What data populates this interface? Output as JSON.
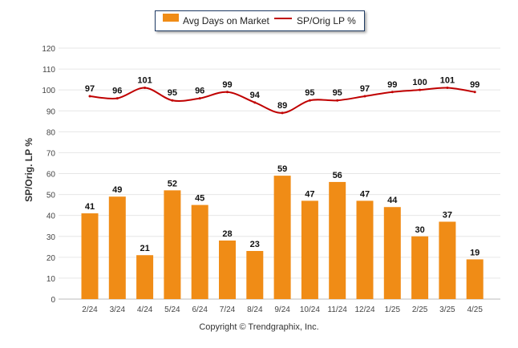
{
  "chart_data": {
    "type": "bar",
    "categories": [
      "2/24",
      "3/24",
      "4/24",
      "5/24",
      "6/24",
      "7/24",
      "8/24",
      "9/24",
      "10/24",
      "11/24",
      "12/24",
      "1/25",
      "2/25",
      "3/25",
      "4/25"
    ],
    "series": [
      {
        "name": "Avg Days on Market",
        "type": "bar",
        "color": "#f08c16",
        "values": [
          41,
          49,
          21,
          52,
          45,
          28,
          23,
          59,
          47,
          56,
          47,
          44,
          30,
          37,
          19
        ]
      },
      {
        "name": "SP/Orig LP %",
        "type": "line",
        "color": "#c00000",
        "values": [
          97,
          96,
          101,
          95,
          96,
          99,
          94,
          89,
          95,
          95,
          97,
          99,
          100,
          101,
          99
        ]
      }
    ],
    "ylabel": "SP/Orig. LP %",
    "ylim": [
      0,
      120
    ],
    "yticks": [
      0,
      10,
      20,
      30,
      40,
      50,
      60,
      70,
      80,
      90,
      100,
      110,
      120
    ],
    "grid": true,
    "legend_position": "top-center"
  },
  "footer": {
    "copyright": "Copyright © Trendgraphix, Inc."
  }
}
